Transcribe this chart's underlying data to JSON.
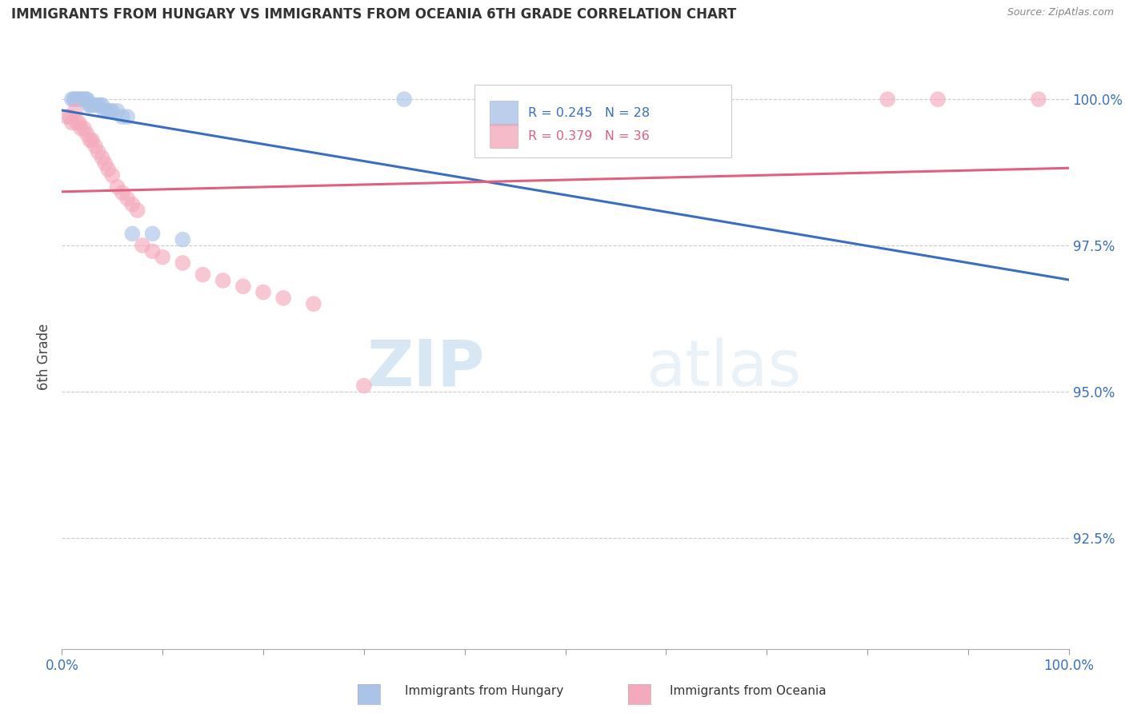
{
  "title": "IMMIGRANTS FROM HUNGARY VS IMMIGRANTS FROM OCEANIA 6TH GRADE CORRELATION CHART",
  "source": "Source: ZipAtlas.com",
  "ylabel": "6th Grade",
  "ytick_labels": [
    "100.0%",
    "97.5%",
    "95.0%",
    "92.5%"
  ],
  "ytick_values": [
    1.0,
    0.975,
    0.95,
    0.925
  ],
  "xlim": [
    0.0,
    1.0
  ],
  "ylim": [
    0.906,
    1.006
  ],
  "legend_label1": "Immigrants from Hungary",
  "legend_label2": "Immigrants from Oceania",
  "R_hungary": 0.245,
  "N_hungary": 28,
  "R_oceania": 0.379,
  "N_oceania": 36,
  "blue_color": "#aac4e8",
  "pink_color": "#f4aabc",
  "line_blue": "#3a6fbf",
  "line_pink": "#e06080",
  "hungary_x": [
    0.01,
    0.012,
    0.013,
    0.015,
    0.016,
    0.018,
    0.02,
    0.022,
    0.024,
    0.025,
    0.027,
    0.028,
    0.03,
    0.032,
    0.035,
    0.038,
    0.04,
    0.042,
    0.045,
    0.048,
    0.05,
    0.055,
    0.06,
    0.065,
    0.07,
    0.09,
    0.12,
    0.34
  ],
  "hungary_y": [
    1.0,
    1.0,
    1.0,
    1.0,
    1.0,
    1.0,
    1.0,
    1.0,
    1.0,
    1.0,
    0.999,
    0.999,
    0.999,
    0.999,
    0.999,
    0.999,
    0.999,
    0.998,
    0.998,
    0.998,
    0.998,
    0.998,
    0.997,
    0.997,
    0.977,
    0.977,
    0.976,
    1.0
  ],
  "oceania_x": [
    0.005,
    0.008,
    0.01,
    0.013,
    0.015,
    0.017,
    0.019,
    0.022,
    0.025,
    0.028,
    0.03,
    0.033,
    0.036,
    0.04,
    0.043,
    0.046,
    0.05,
    0.055,
    0.06,
    0.065,
    0.07,
    0.075,
    0.08,
    0.09,
    0.1,
    0.12,
    0.14,
    0.16,
    0.18,
    0.2,
    0.22,
    0.25,
    0.3,
    0.82,
    0.87,
    0.97
  ],
  "oceania_y": [
    0.997,
    0.997,
    0.996,
    0.998,
    0.996,
    0.996,
    0.995,
    0.995,
    0.994,
    0.993,
    0.993,
    0.992,
    0.991,
    0.99,
    0.989,
    0.988,
    0.987,
    0.985,
    0.984,
    0.983,
    0.982,
    0.981,
    0.975,
    0.974,
    0.973,
    0.972,
    0.97,
    0.969,
    0.968,
    0.967,
    0.966,
    0.965,
    0.951,
    1.0,
    1.0,
    1.0
  ],
  "watermark_zip": "ZIP",
  "watermark_atlas": "atlas",
  "background_color": "#ffffff",
  "grid_color": "#cccccc"
}
